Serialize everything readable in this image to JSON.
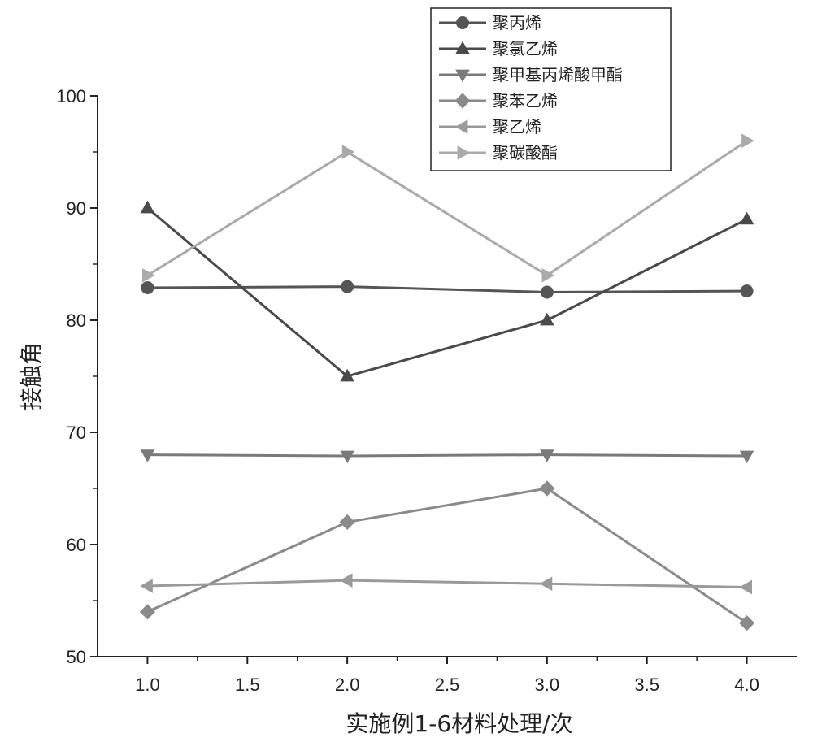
{
  "chart_data": {
    "type": "line",
    "xlabel": "实施例1-6材料处理/次",
    "ylabel": "接触角",
    "xlim": [
      0.75,
      4.25
    ],
    "ylim": [
      50,
      100
    ],
    "x_ticks": [
      "1.0",
      "1.5",
      "2.0",
      "2.5",
      "3.0",
      "3.5",
      "4.0"
    ],
    "y_ticks": [
      "50",
      "60",
      "70",
      "80",
      "90",
      "100"
    ],
    "grid": false,
    "legend_position": "top-right",
    "x": [
      1.0,
      2.0,
      3.0,
      4.0
    ],
    "series": [
      {
        "name": "聚丙烯",
        "marker": "circle",
        "color": "#555555",
        "values": [
          82.9,
          83.0,
          82.5,
          82.6
        ]
      },
      {
        "name": "聚氯乙烯",
        "marker": "triangle-up",
        "color": "#4a4a4a",
        "values": [
          90.0,
          75.0,
          80.0,
          89.0
        ]
      },
      {
        "name": "聚甲基丙烯酸甲酯",
        "marker": "triangle-down",
        "color": "#7a7a7a",
        "values": [
          68.0,
          67.9,
          68.0,
          67.9
        ]
      },
      {
        "name": "聚苯乙烯",
        "marker": "diamond",
        "color": "#8a8a8a",
        "values": [
          54.0,
          62.0,
          65.0,
          53.0
        ]
      },
      {
        "name": "聚乙烯",
        "marker": "triangle-left",
        "color": "#9a9a9a",
        "values": [
          56.3,
          56.8,
          56.5,
          56.2
        ]
      },
      {
        "name": "聚碳酸酯",
        "marker": "triangle-right",
        "color": "#aaaaaa",
        "values": [
          84.0,
          95.0,
          84.0,
          96.0
        ]
      }
    ]
  }
}
